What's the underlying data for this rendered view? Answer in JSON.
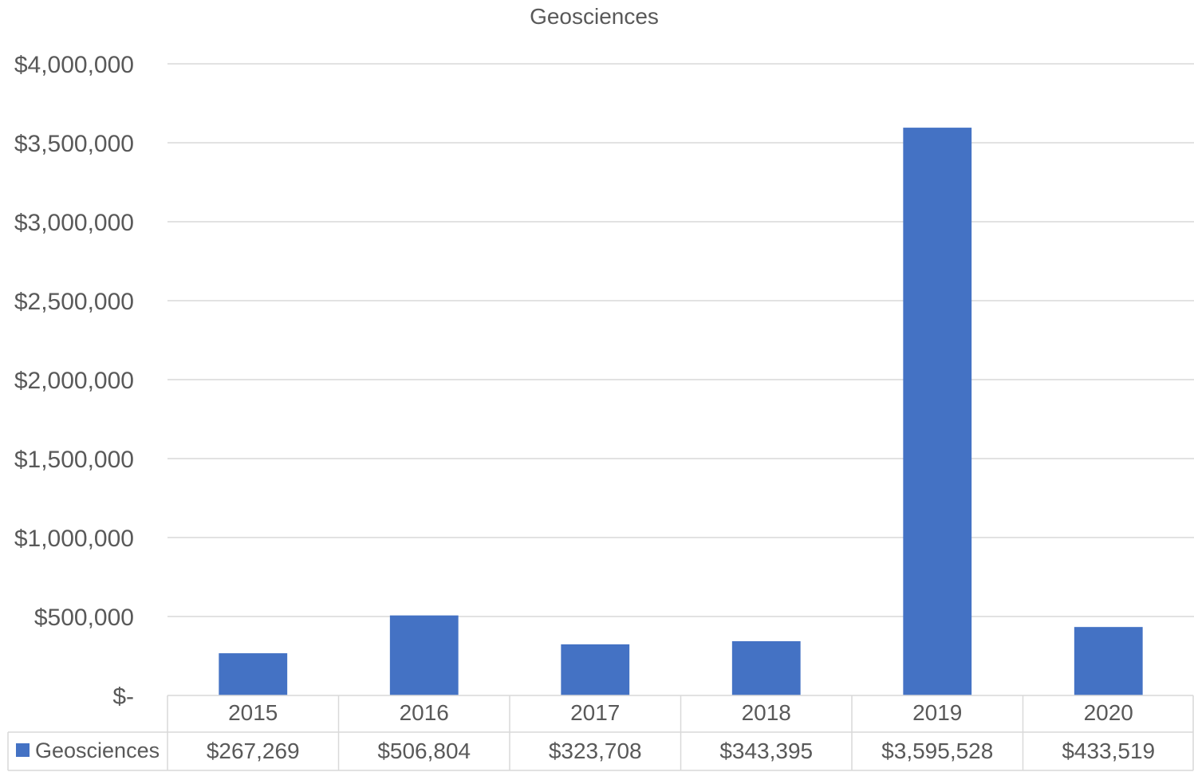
{
  "chart_data": {
    "type": "bar",
    "title": "Geosciences",
    "xlabel": "",
    "ylabel": "",
    "categories": [
      "2015",
      "2016",
      "2017",
      "2018",
      "2019",
      "2020"
    ],
    "series": [
      {
        "name": "Geosciences",
        "values": [
          267269,
          506804,
          323708,
          343395,
          3595528,
          433519
        ],
        "labels": [
          "$267,269",
          "$506,804",
          "$323,708",
          "$343,395",
          "$3,595,528",
          "$433,519"
        ],
        "color": "#4472C4"
      }
    ],
    "ylim": [
      0,
      4000000
    ],
    "yticks": [
      0,
      500000,
      1000000,
      1500000,
      2000000,
      2500000,
      3000000,
      3500000,
      4000000
    ],
    "ytick_labels": [
      "$-",
      "$500,000",
      "$1,000,000",
      "$1,500,000",
      "$2,000,000",
      "$2,500,000",
      "$3,000,000",
      "$3,500,000",
      "$4,000,000"
    ],
    "grid": true,
    "legend": "data-table",
    "data_table": true
  }
}
